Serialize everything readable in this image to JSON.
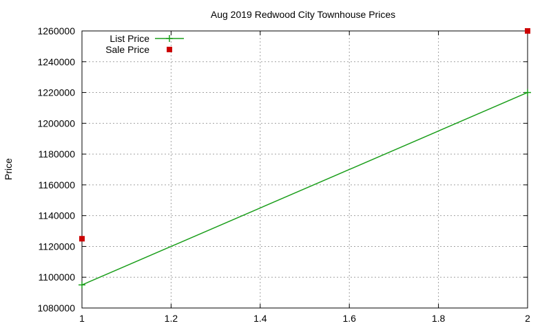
{
  "chart_data": {
    "type": "line",
    "title": "Aug 2019 Redwood City Townhouse Prices",
    "xlabel": "",
    "ylabel": "Price",
    "xlim": [
      1,
      2
    ],
    "ylim": [
      1080000,
      1260000
    ],
    "x_ticks": [
      1,
      1.2,
      1.4,
      1.6,
      1.8,
      2
    ],
    "x_tick_labels": [
      "1",
      "1.2",
      "1.4",
      "1.6",
      "1.8",
      "2"
    ],
    "y_ticks": [
      1080000,
      1100000,
      1120000,
      1140000,
      1160000,
      1180000,
      1200000,
      1220000,
      1240000,
      1260000
    ],
    "y_tick_labels": [
      "1080000",
      "1100000",
      "1120000",
      "1140000",
      "1160000",
      "1180000",
      "1200000",
      "1220000",
      "1240000",
      "1260000"
    ],
    "grid": true,
    "legend_position": "top-left",
    "series": [
      {
        "name": "List Price",
        "style": "linespoints",
        "marker": "plus",
        "color": "#1a9e1a",
        "x": [
          1,
          2
        ],
        "y": [
          1095000,
          1220000
        ]
      },
      {
        "name": "Sale Price",
        "style": "points",
        "marker": "square",
        "color": "#cc0000",
        "x": [
          1,
          2
        ],
        "y": [
          1125000,
          1260000
        ]
      }
    ]
  }
}
